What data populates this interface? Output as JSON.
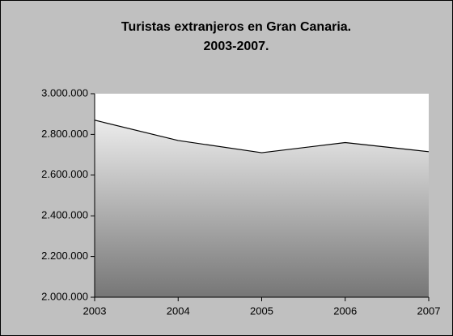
{
  "chart_data": {
    "type": "area",
    "title": [
      "Turistas extranjeros en Gran Canaria.",
      "2003-2007."
    ],
    "x": [
      2003,
      2004,
      2005,
      2006,
      2007
    ],
    "values": [
      2870000,
      2770000,
      2710000,
      2760000,
      2715000
    ],
    "colors": [
      "#ececec",
      "#767676"
    ],
    "xlim": [
      2003,
      2007
    ],
    "xticks": [
      2003,
      2004,
      2005,
      2006,
      2007
    ],
    "ylim": [
      2000000,
      3000000
    ],
    "yticks": [
      {
        "value": 2000000,
        "label": "2.000.000"
      },
      {
        "value": 2200000,
        "label": "2.200.000"
      },
      {
        "value": 2400000,
        "label": "2.400.000"
      },
      {
        "value": 2600000,
        "label": "2.600.000"
      },
      {
        "value": 2800000,
        "label": "2.800.000"
      },
      {
        "value": 3000000,
        "label": "3.000.000"
      }
    ]
  }
}
